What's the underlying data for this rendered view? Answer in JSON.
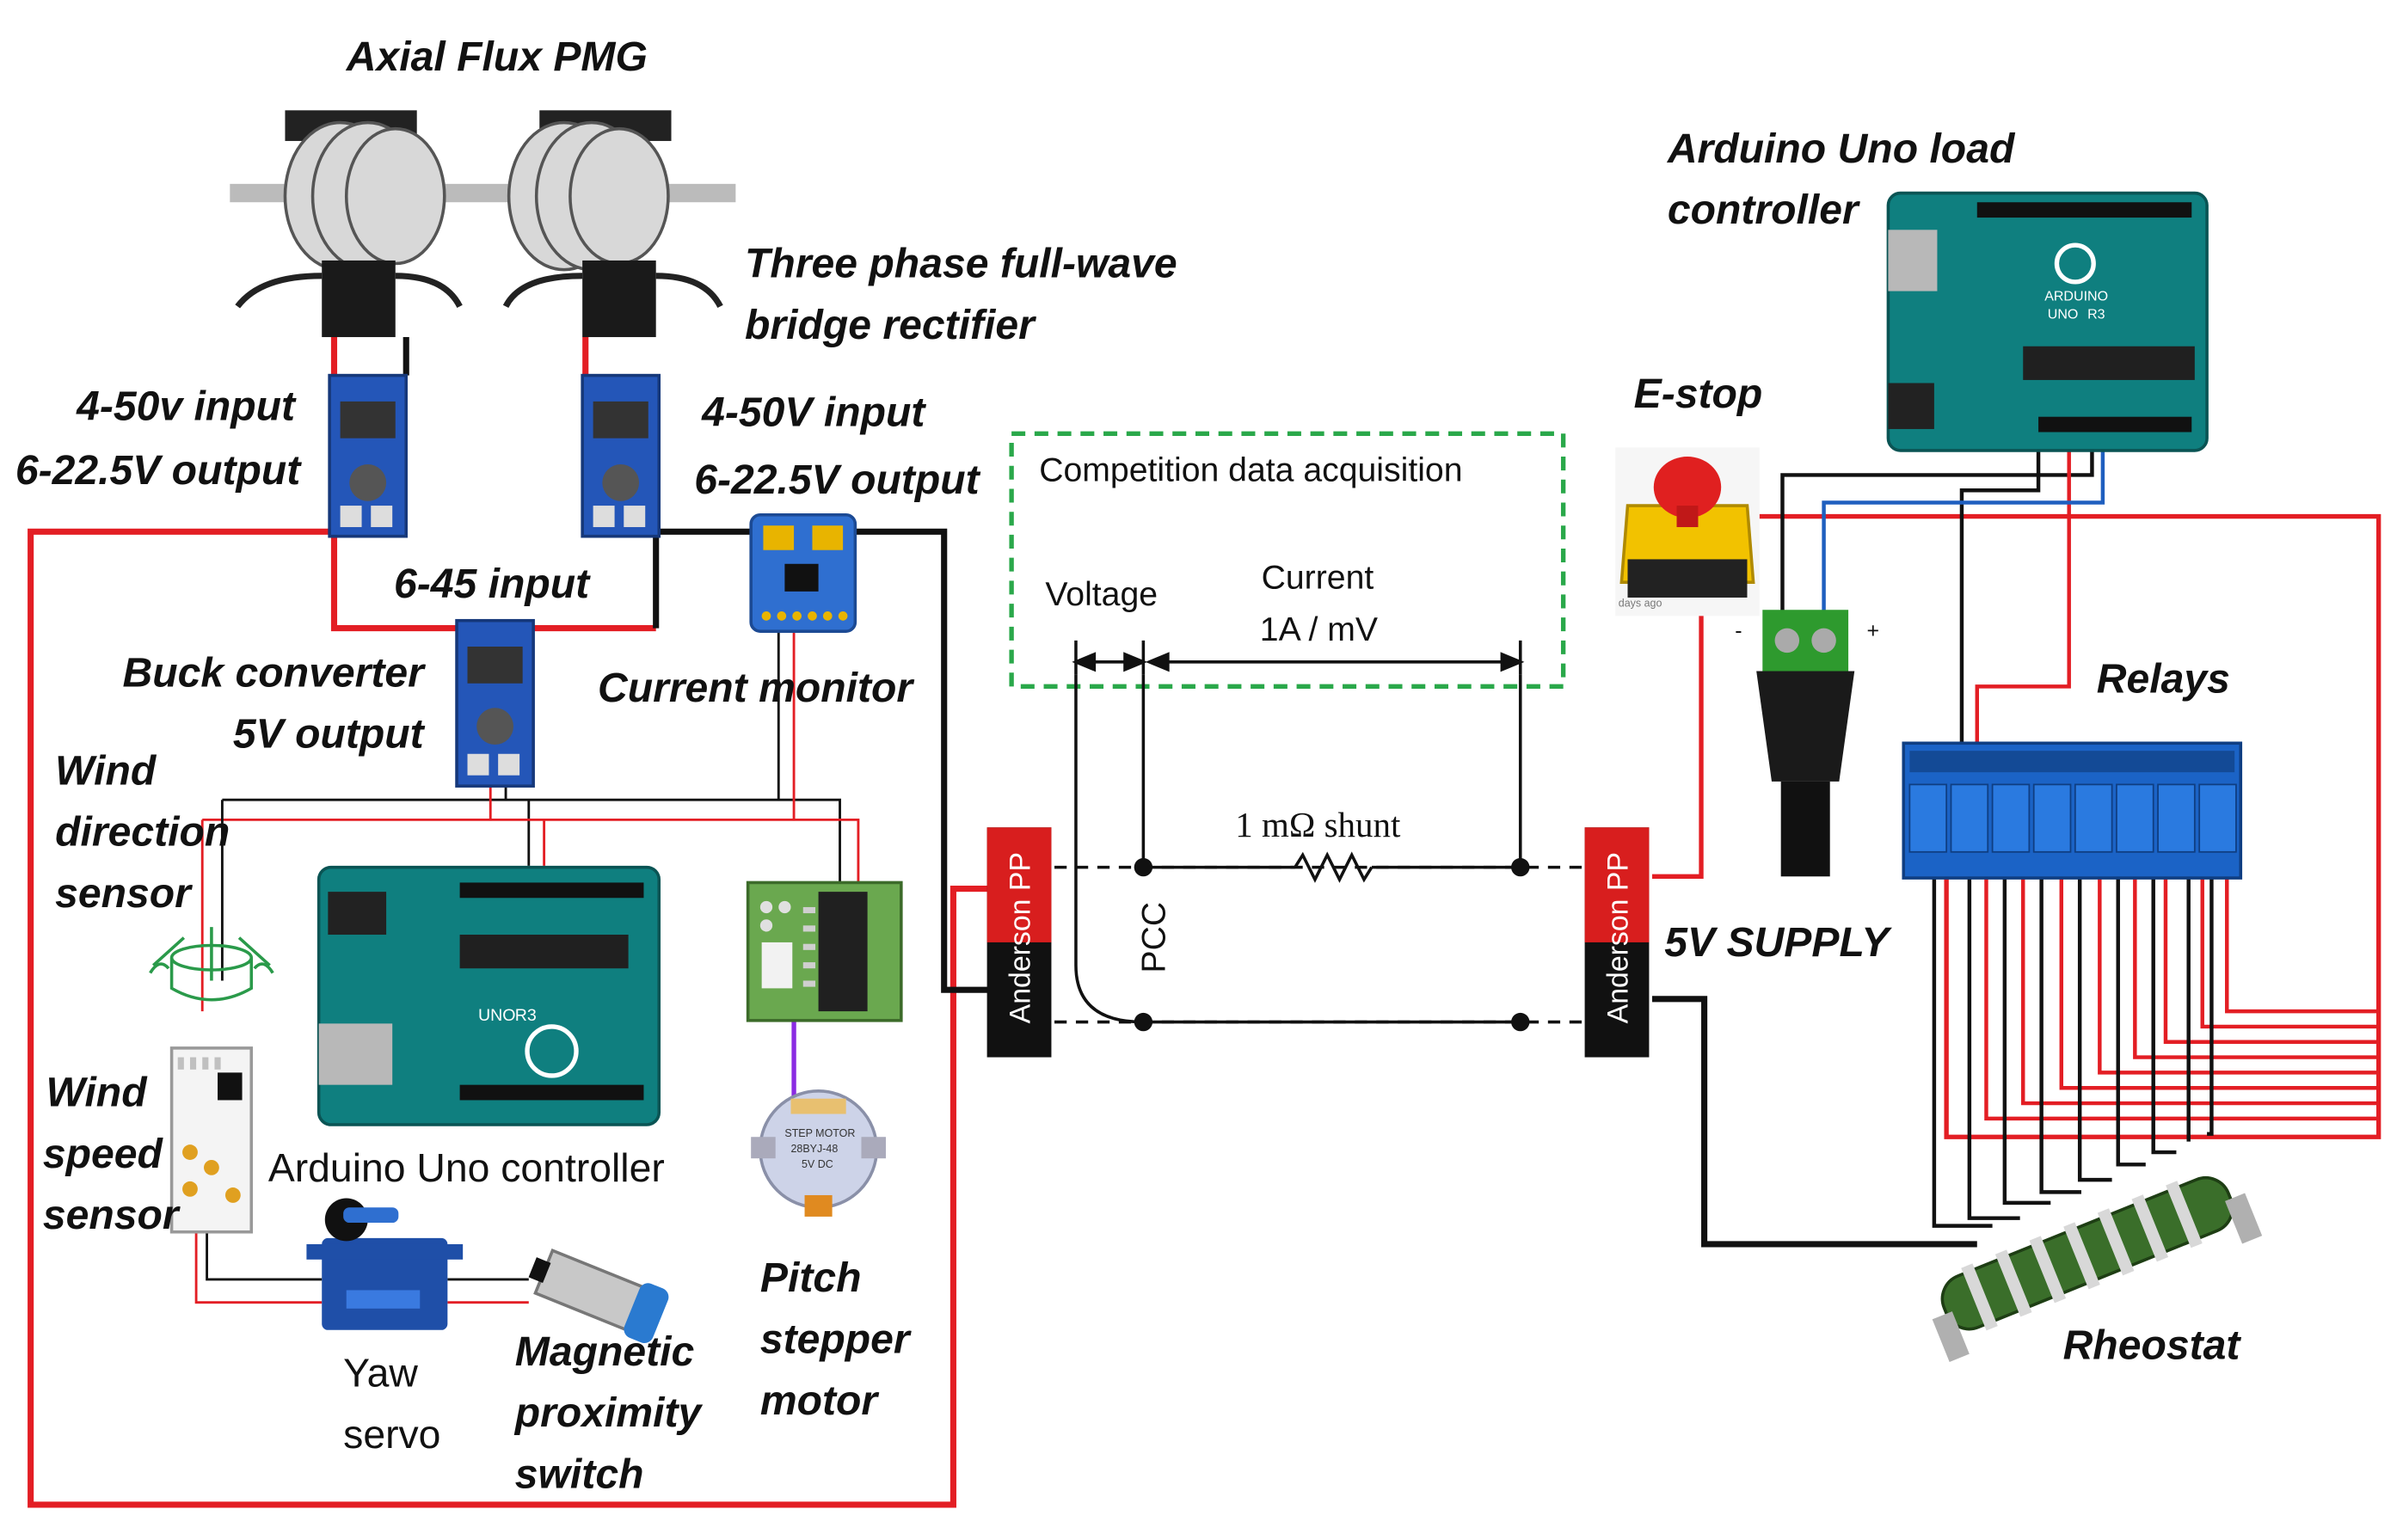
{
  "labels": {
    "generator": "Axial Flux PMG",
    "rectifier_line1": "Three phase full-wave",
    "rectifier_line2": "bridge rectifier",
    "conv_left_line1": "4-50v input",
    "conv_left_line2": "6-22.5V output",
    "conv_right_line1": "4-50V input",
    "conv_right_line2": "6-22.5V output",
    "buck_input": "6-45 input",
    "buck_line1": "Buck converter",
    "buck_line2": "5V output",
    "current_monitor": "Current monitor",
    "wind_direction_line1": "Wind",
    "wind_direction_line2": "direction",
    "wind_direction_line3": "sensor",
    "wind_speed_line1": "Wind",
    "wind_speed_line2": "speed",
    "wind_speed_line3": "sensor",
    "controller": "Arduino Uno controller",
    "yaw_line1": "Yaw",
    "yaw_line2": "servo",
    "proximity_line1": "Magnetic",
    "proximity_line2": "proximity",
    "proximity_line3": "switch",
    "pitch_line1": "Pitch",
    "pitch_line2": "stepper",
    "pitch_line3": "motor",
    "load_controller_line1": "Arduino Uno load",
    "load_controller_line2": "controller",
    "estop": "E-stop",
    "estop_caption": "days ago",
    "relays": "Relays",
    "rheostat": "Rheostat",
    "supply": "5V SUPPLY",
    "connector_left": "Anderson PP",
    "connector_right": "Anderson PP",
    "polarity_minus": "-",
    "polarity_plus": "+"
  },
  "daq": {
    "title": "Competition data acquisition",
    "voltage": "Voltage",
    "current_line1": "Current",
    "current_line2": "1A / mV",
    "shunt": "1 mΩ shunt",
    "pcc": "PCC"
  },
  "board_text": {
    "arduino": "ARDUINO",
    "uno": "UNO",
    "r3": "R3",
    "stepper_label_1": "STEP MOTOR",
    "stepper_label_2": "28BYJ-48",
    "stepper_label_3": "5V DC"
  },
  "colors": {
    "red_wire": "#e31e24",
    "black_wire": "#111111",
    "blue_wire": "#1f5fbf",
    "daq_border": "#2aa84a",
    "board_green": "#0f7f7f",
    "relay_blue": "#1b63c6",
    "converter_blue": "#2456b8"
  },
  "icons": [
    "generator-icon",
    "converter-icon",
    "sensor-board-icon",
    "arduino-icon",
    "driver-board-icon",
    "stepper-icon",
    "servo-icon",
    "proximity-icon",
    "vane-icon",
    "anemometer-board-icon",
    "estop-icon",
    "dc-jack-icon",
    "relay-board-icon",
    "rheostat-icon",
    "anderson-connector-icon",
    "resistor-symbol"
  ]
}
